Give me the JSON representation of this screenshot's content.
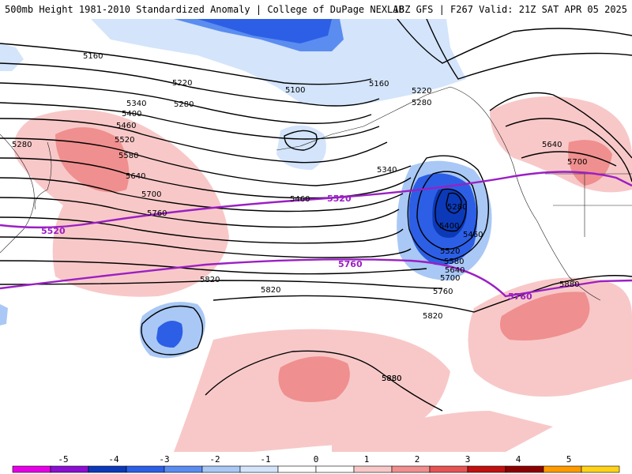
{
  "header": {
    "title_left": "500mb Height 1981-2010 Standardized Anomaly | College of DuPage NEXLAB",
    "title_right": "18Z GFS | F267 Valid: 21Z SAT APR 05 2025"
  },
  "colors": {
    "anomaly_scale": [
      "#e600e6",
      "#8a0fd1",
      "#0b39b8",
      "#2c5fe6",
      "#5b8cf0",
      "#a9c8f5",
      "#d3e4fb",
      "#ffffff",
      "#ffffff",
      "#f8c8c8",
      "#f08f8f",
      "#e65353",
      "#c01010",
      "#8b0000",
      "#ff9a00",
      "#ffd21a"
    ],
    "reference_contour": "#9b1fc4",
    "height_contour": "#000000"
  },
  "colorbar": {
    "labels": [
      "-5",
      "-4",
      "-3",
      "-2",
      "-1",
      "0",
      "1",
      "2",
      "3",
      "4",
      "5"
    ]
  },
  "height_labels": [
    "5160",
    "5220",
    "5280",
    "5340",
    "5400",
    "5460",
    "5520",
    "5580",
    "5640",
    "5700",
    "5760",
    "5820",
    "5880",
    "5280",
    "5160",
    "5100",
    "5220",
    "5280",
    "5340",
    "5460",
    "5280",
    "5400",
    "5460",
    "5520",
    "5580",
    "5640",
    "5700",
    "5760",
    "5820",
    "5640",
    "5700",
    "5880",
    "5820",
    "5880"
  ],
  "reference_labels": [
    "5520",
    "5520",
    "5760",
    "5760"
  ]
}
